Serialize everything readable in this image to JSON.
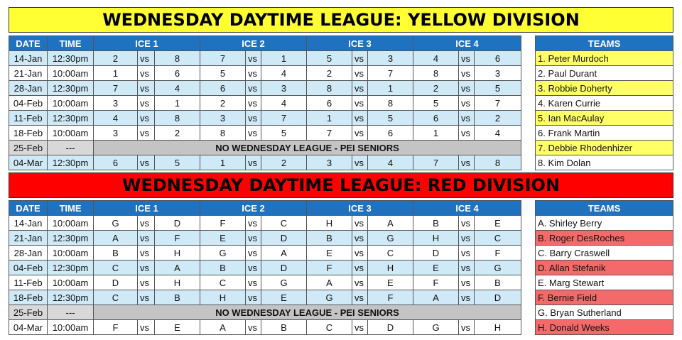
{
  "yellow": {
    "title": "WEDNESDAY DAYTIME LEAGUE: YELLOW DIVISION",
    "headers": {
      "date": "DATE",
      "time": "TIME",
      "ice1": "ICE 1",
      "ice2": "ICE 2",
      "ice3": "ICE 3",
      "ice4": "ICE 4",
      "teams": "TEAMS"
    },
    "vs": "vs",
    "rows": [
      {
        "date": "14-Jan",
        "time": "12:30pm",
        "g": [
          [
            "2",
            "8"
          ],
          [
            "7",
            "1"
          ],
          [
            "5",
            "3"
          ],
          [
            "4",
            "6"
          ]
        ]
      },
      {
        "date": "21-Jan",
        "time": "10:00am",
        "g": [
          [
            "1",
            "6"
          ],
          [
            "5",
            "4"
          ],
          [
            "2",
            "7"
          ],
          [
            "8",
            "3"
          ]
        ]
      },
      {
        "date": "28-Jan",
        "time": "12:30pm",
        "g": [
          [
            "7",
            "4"
          ],
          [
            "6",
            "3"
          ],
          [
            "8",
            "1"
          ],
          [
            "2",
            "5"
          ]
        ]
      },
      {
        "date": "04-Feb",
        "time": "10:00am",
        "g": [
          [
            "3",
            "1"
          ],
          [
            "2",
            "4"
          ],
          [
            "6",
            "8"
          ],
          [
            "5",
            "7"
          ]
        ]
      },
      {
        "date": "11-Feb",
        "time": "12:30pm",
        "g": [
          [
            "4",
            "8"
          ],
          [
            "3",
            "7"
          ],
          [
            "1",
            "5"
          ],
          [
            "6",
            "2"
          ]
        ]
      },
      {
        "date": "18-Feb",
        "time": "10:00am",
        "g": [
          [
            "3",
            "2"
          ],
          [
            "8",
            "5"
          ],
          [
            "7",
            "6"
          ],
          [
            "1",
            "4"
          ]
        ]
      }
    ],
    "off": {
      "date": "25-Feb",
      "time": "---",
      "message": "NO WEDNESDAY LEAGUE - PEI SENIORS"
    },
    "last": {
      "date": "04-Mar",
      "time": "12:30pm",
      "g": [
        [
          "6",
          "5"
        ],
        [
          "1",
          "2"
        ],
        [
          "3",
          "4"
        ],
        [
          "7",
          "8"
        ]
      ]
    },
    "teams": [
      "1. Peter Murdoch",
      "2. Paul Durant",
      "3. Robbie Doherty",
      "4. Karen Currie",
      "5. Ian MacAulay",
      "6. Frank Martin",
      "7. Debbie Rhodenhizer",
      "8. Kim Dolan"
    ]
  },
  "red": {
    "title": "WEDNESDAY DAYTIME LEAGUE: RED DIVISION",
    "headers": {
      "date": "DATE",
      "time": "TIME",
      "ice1": "ICE 1",
      "ice2": "ICE 2",
      "ice3": "ICE 3",
      "ice4": "ICE 4",
      "teams": "TEAMS"
    },
    "vs": "vs",
    "rows": [
      {
        "date": "14-Jan",
        "time": "10:00am",
        "g": [
          [
            "G",
            "D"
          ],
          [
            "F",
            "C"
          ],
          [
            "H",
            "A"
          ],
          [
            "B",
            "E"
          ]
        ]
      },
      {
        "date": "21-Jan",
        "time": "12:30pm",
        "g": [
          [
            "A",
            "F"
          ],
          [
            "E",
            "D"
          ],
          [
            "B",
            "G"
          ],
          [
            "H",
            "C"
          ]
        ]
      },
      {
        "date": "28-Jan",
        "time": "10:00am",
        "g": [
          [
            "B",
            "H"
          ],
          [
            "G",
            "A"
          ],
          [
            "E",
            "C"
          ],
          [
            "D",
            "F"
          ]
        ]
      },
      {
        "date": "04-Feb",
        "time": "12:30pm",
        "g": [
          [
            "C",
            "A"
          ],
          [
            "B",
            "D"
          ],
          [
            "F",
            "H"
          ],
          [
            "E",
            "G"
          ]
        ]
      },
      {
        "date": "11-Feb",
        "time": "10:00am",
        "g": [
          [
            "D",
            "H"
          ],
          [
            "C",
            "G"
          ],
          [
            "A",
            "E"
          ],
          [
            "F",
            "B"
          ]
        ]
      },
      {
        "date": "18-Feb",
        "time": "12:30pm",
        "g": [
          [
            "C",
            "B"
          ],
          [
            "H",
            "E"
          ],
          [
            "G",
            "F"
          ],
          [
            "A",
            "D"
          ]
        ]
      }
    ],
    "off": {
      "date": "25-Feb",
      "time": "---",
      "message": "NO WEDNESDAY LEAGUE - PEI SENIORS"
    },
    "last": {
      "date": "04-Mar",
      "time": "10:00am",
      "g": [
        [
          "F",
          "E"
        ],
        [
          "A",
          "B"
        ],
        [
          "C",
          "D"
        ],
        [
          "G",
          "H"
        ]
      ]
    },
    "teams": [
      "A. Shirley Berry",
      "B. Roger DesRoches",
      "C. Barry Craswell",
      "D. Allan Stefanik",
      "E. Marg Stewart",
      "F. Bernie Field",
      "G. Bryan Sutherland",
      "H. Donald Weeks"
    ]
  },
  "colors": {
    "yellow_banner": "#ffff33",
    "red_banner": "#ff0000",
    "header_blue": "#1f72c0",
    "row_blue": "#cfe9f7",
    "team_yellow": "#ffff66",
    "team_red": "#f46a6a"
  }
}
